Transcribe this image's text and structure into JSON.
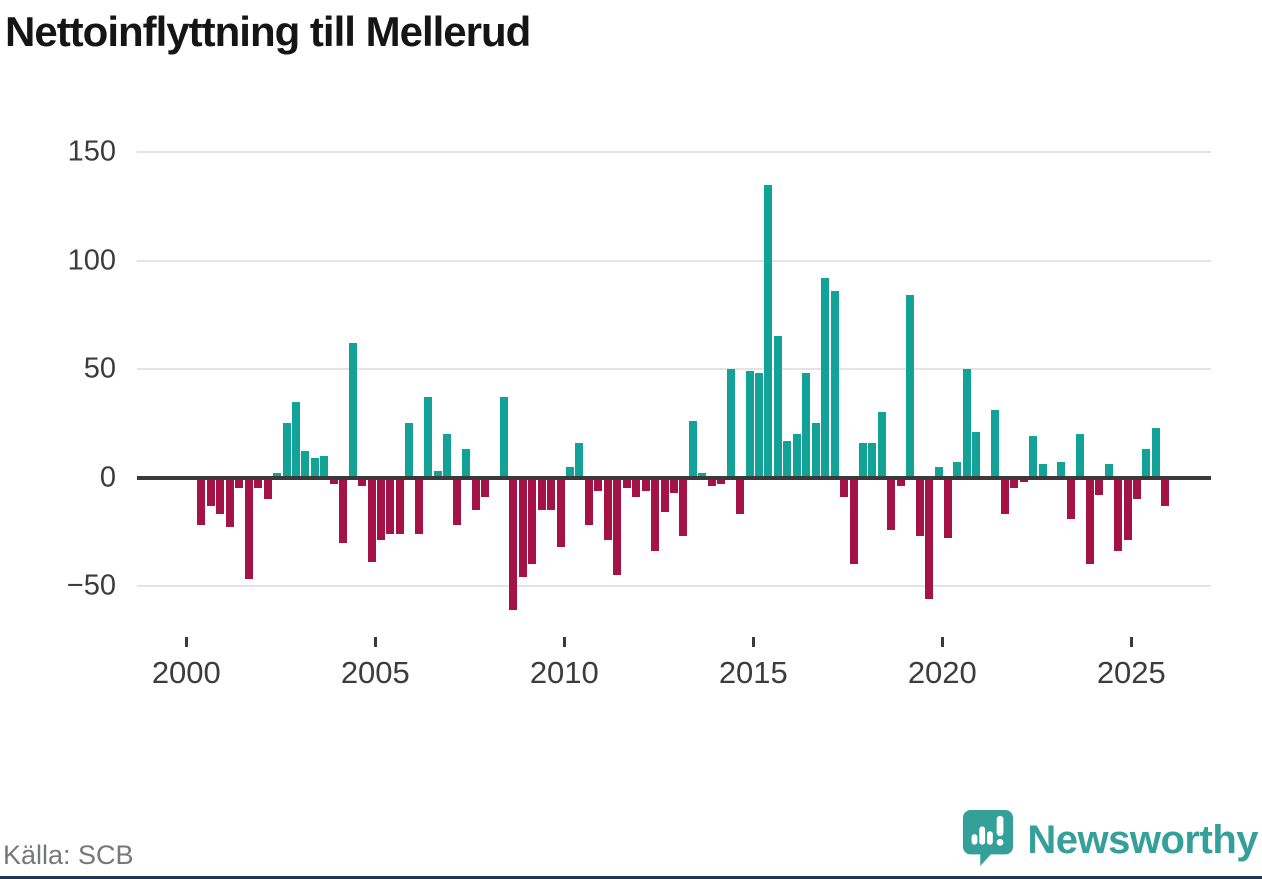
{
  "chart_data": {
    "type": "bar",
    "title": "Nettoinflyttning till Mellerud",
    "source_label": "Källa: SCB",
    "brand_name": "Newsworthy",
    "period": "quarterly",
    "x_start": "2000Q1",
    "x_end": "2025Q4",
    "x_tick_years": [
      2000,
      2005,
      2010,
      2015,
      2020,
      2025
    ],
    "x_tick_labels": [
      "2000",
      "2005",
      "2010",
      "2015",
      "2020",
      "2025"
    ],
    "y_tick_values": [
      150,
      100,
      50,
      0,
      -50
    ],
    "y_tick_labels": [
      "150",
      "100",
      "50",
      "0",
      "−50"
    ],
    "y_gridline_values": [
      150,
      100,
      50,
      -50
    ],
    "ylim": [
      -65,
      155
    ],
    "grid": true,
    "legend": false,
    "positive_color": "#13a297",
    "negative_color": "#a41246",
    "values": [
      0,
      -22,
      -13,
      -17,
      -23,
      -5,
      -47,
      -5,
      -10,
      2,
      25,
      35,
      12,
      9,
      10,
      -3,
      -30,
      62,
      -4,
      -39,
      -29,
      -26,
      -26,
      25,
      -26,
      37,
      3,
      20,
      -22,
      13,
      -15,
      -9,
      0,
      37,
      -61,
      -46,
      -40,
      -15,
      -15,
      -32,
      5,
      16,
      -22,
      -6,
      -29,
      -45,
      -5,
      -9,
      -6,
      -34,
      -16,
      -7,
      -27,
      26,
      2,
      -4,
      -3,
      50,
      -17,
      49,
      48,
      135,
      65,
      17,
      20,
      48,
      25,
      92,
      86,
      -9,
      -40,
      16,
      16,
      30,
      -24,
      -4,
      84,
      -27,
      -56,
      5,
      -28,
      7,
      50,
      21,
      0,
      31,
      -17,
      -5,
      -2,
      19,
      6,
      0,
      7,
      -19,
      20,
      -40,
      -8,
      6,
      -34,
      -29,
      -10,
      13,
      23,
      -13
    ]
  }
}
